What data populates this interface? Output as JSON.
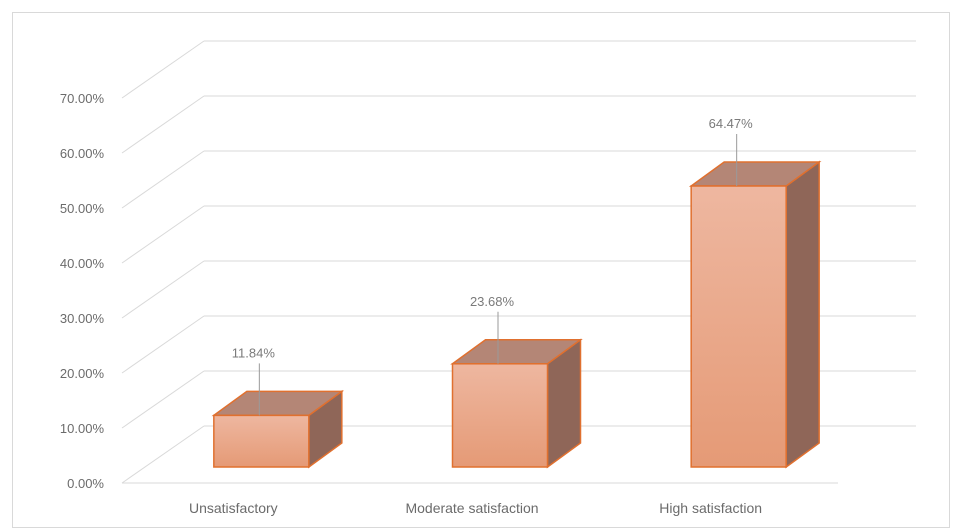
{
  "chart_data": {
    "type": "bar",
    "style": "3d-column",
    "categories": [
      "Unsatisfactory",
      "Moderate satisfaction",
      "High satisfaction"
    ],
    "values": [
      11.84,
      23.68,
      64.47
    ],
    "data_labels": [
      "11.84%",
      "23.68%",
      "64.47%"
    ],
    "y_ticks": [
      "0.00%",
      "10.00%",
      "20.00%",
      "30.00%",
      "40.00%",
      "50.00%",
      "60.00%",
      "70.00%"
    ],
    "ylim": [
      0,
      70
    ],
    "grid": true,
    "legend": "none"
  },
  "colors": {
    "bar_front": "#e8a585",
    "bar_top": "#b48676",
    "bar_side": "#8f6658",
    "bar_outline": "#e0702f",
    "gridline": "#d9d9d9",
    "leader_line": "#9a9a9a"
  }
}
